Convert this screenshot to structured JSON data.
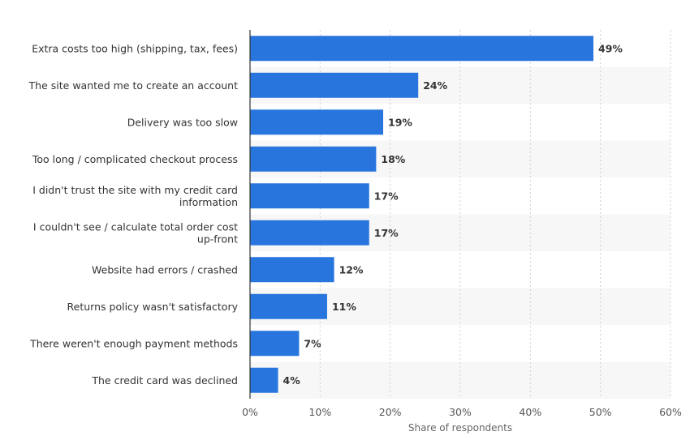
{
  "chart_data": {
    "type": "bar",
    "orientation": "horizontal",
    "categories": [
      [
        "Extra costs too high (shipping, tax, fees)"
      ],
      [
        "The site wanted me to create an account"
      ],
      [
        "Delivery was too slow"
      ],
      [
        "Too long / complicated checkout process"
      ],
      [
        "I didn't trust the site with my credit card",
        "information"
      ],
      [
        "I couldn't see / calculate total order cost",
        "up-front"
      ],
      [
        "Website had errors / crashed"
      ],
      [
        "Returns policy wasn't satisfactory"
      ],
      [
        "There weren't enough payment methods"
      ],
      [
        "The credit card was declined"
      ]
    ],
    "values": [
      49,
      24,
      19,
      18,
      17,
      17,
      12,
      11,
      7,
      4
    ],
    "value_labels": [
      "49%",
      "24%",
      "19%",
      "18%",
      "17%",
      "17%",
      "12%",
      "11%",
      "7%",
      "4%"
    ],
    "xticks": [
      0,
      10,
      20,
      30,
      40,
      50,
      60
    ],
    "xtick_labels": [
      "0%",
      "10%",
      "20%",
      "30%",
      "40%",
      "50%",
      "60%"
    ],
    "xlim": [
      0,
      60
    ],
    "xlabel": "Share of respondents",
    "bar_color": "#2876dd",
    "band_color": "#f7f7f7",
    "grid": true
  }
}
